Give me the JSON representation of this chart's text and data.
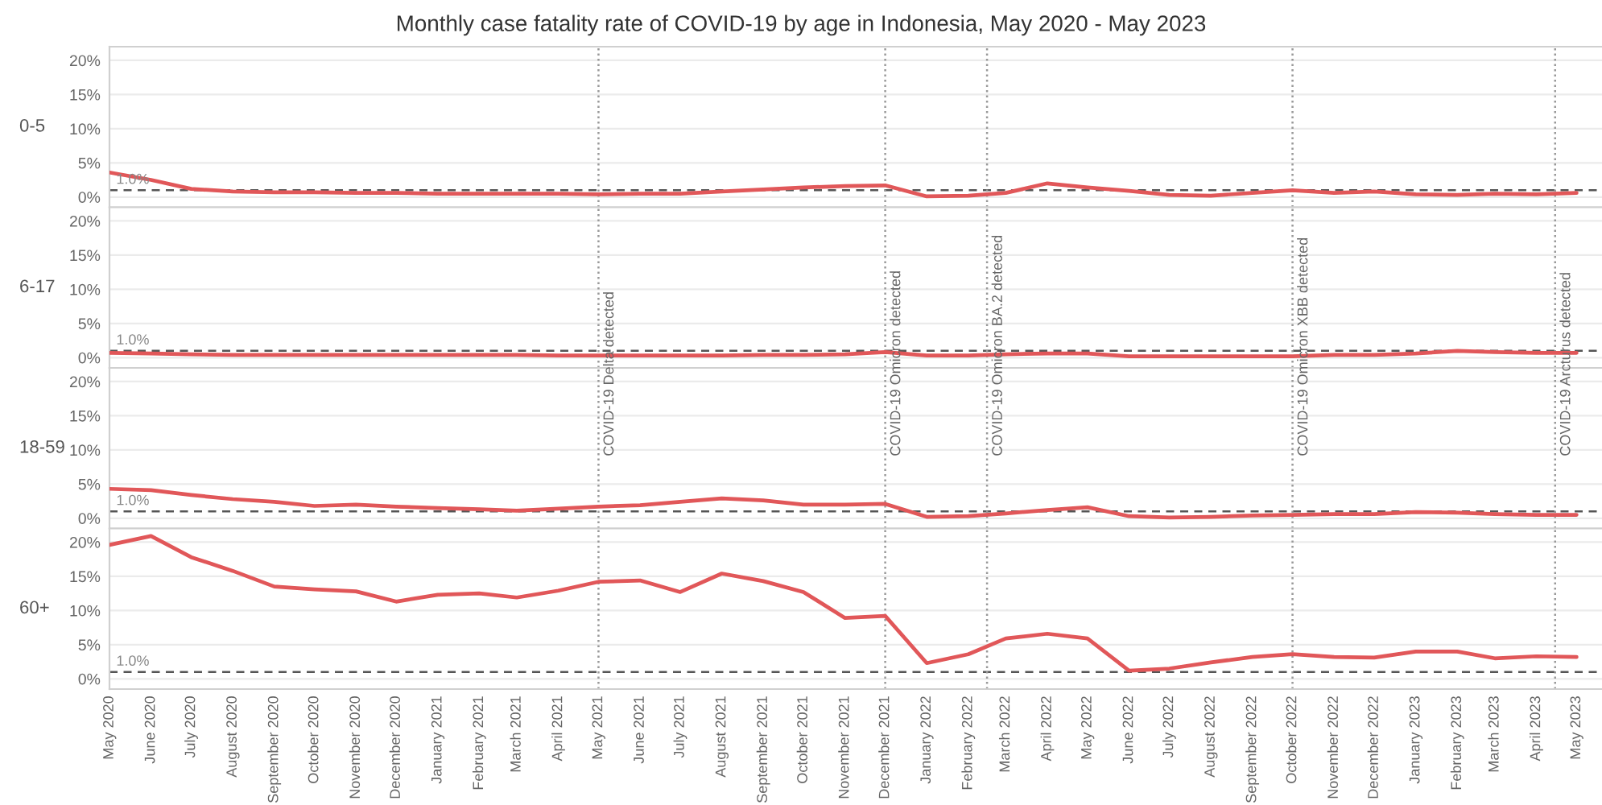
{
  "chart_data": [
    {
      "type": "line",
      "title": "Monthly case fatality rate of COVID-19 by age in Indonesia, May 2020 - May 2023",
      "ylabel": "0-5",
      "x": [
        "2020-05",
        "2020-06",
        "2020-07",
        "2020-08",
        "2020-09",
        "2020-10",
        "2020-11",
        "2020-12",
        "2021-01",
        "2021-02",
        "2021-03",
        "2021-04",
        "2021-05",
        "2021-06",
        "2021-07",
        "2021-08",
        "2021-09",
        "2021-10",
        "2021-11",
        "2021-12",
        "2022-01",
        "2022-02",
        "2022-03",
        "2022-04",
        "2022-05",
        "2022-06",
        "2022-07",
        "2022-08",
        "2022-09",
        "2022-10",
        "2022-11",
        "2022-12",
        "2023-01",
        "2023-02",
        "2023-03",
        "2023-04",
        "2023-05"
      ],
      "series": [
        {
          "color": "#e15759",
          "values": [
            3.6,
            2.5,
            1.2,
            0.8,
            0.7,
            0.7,
            0.6,
            0.6,
            0.5,
            0.5,
            0.5,
            0.5,
            0.4,
            0.5,
            0.5,
            0.8,
            1.1,
            1.4,
            1.6,
            1.7,
            0.1,
            0.2,
            0.6,
            2.0,
            1.4,
            0.9,
            0.3,
            0.2,
            0.6,
            1.0,
            0.6,
            0.8,
            0.4,
            0.3,
            0.5,
            0.4,
            0.6
          ]
        }
      ],
      "xlim": [
        "2020-05",
        "2023-05-20"
      ],
      "ylim": [
        -1.5,
        22
      ],
      "yticks": [
        {
          "value": 0,
          "label": "0%"
        },
        {
          "value": 5,
          "label": "5%"
        },
        {
          "value": 10,
          "label": "10%"
        },
        {
          "value": 15,
          "label": "15%"
        },
        {
          "value": 20,
          "label": "20%"
        }
      ],
      "tick_labels": "y",
      "grid": "y",
      "ref_lines": [
        {
          "axis": "y",
          "value": 1.0,
          "label": "1.0%",
          "line_style": "dashed",
          "color": "#555555"
        },
        {
          "axis": "x",
          "value": "2021-05",
          "line_style": "dotted",
          "color": "#999999"
        },
        {
          "axis": "x",
          "value": "2021-12",
          "line_style": "dotted",
          "color": "#999999"
        },
        {
          "axis": "x",
          "value": "2022-02-15",
          "line_style": "dotted",
          "color": "#999999"
        },
        {
          "axis": "x",
          "value": "2022-10",
          "line_style": "dotted",
          "color": "#999999"
        },
        {
          "axis": "x",
          "value": "2023-04-15",
          "line_style": "dotted",
          "color": "#999999"
        }
      ]
    },
    {
      "type": "line",
      "ylabel": "6-17",
      "x": [
        "2020-05",
        "2020-06",
        "2020-07",
        "2020-08",
        "2020-09",
        "2020-10",
        "2020-11",
        "2020-12",
        "2021-01",
        "2021-02",
        "2021-03",
        "2021-04",
        "2021-05",
        "2021-06",
        "2021-07",
        "2021-08",
        "2021-09",
        "2021-10",
        "2021-11",
        "2021-12",
        "2022-01",
        "2022-02",
        "2022-03",
        "2022-04",
        "2022-05",
        "2022-06",
        "2022-07",
        "2022-08",
        "2022-09",
        "2022-10",
        "2022-11",
        "2022-12",
        "2023-01",
        "2023-02",
        "2023-03",
        "2023-04",
        "2023-05"
      ],
      "series": [
        {
          "color": "#e15759",
          "values": [
            0.7,
            0.6,
            0.5,
            0.4,
            0.4,
            0.4,
            0.4,
            0.4,
            0.4,
            0.4,
            0.4,
            0.3,
            0.3,
            0.3,
            0.3,
            0.3,
            0.4,
            0.4,
            0.5,
            0.8,
            0.3,
            0.3,
            0.5,
            0.6,
            0.6,
            0.2,
            0.2,
            0.2,
            0.2,
            0.2,
            0.4,
            0.4,
            0.6,
            1.0,
            0.8,
            0.7,
            0.7
          ]
        }
      ],
      "xlim": [
        "2020-05",
        "2023-05-20"
      ],
      "ylim": [
        -1.5,
        22
      ],
      "yticks": [
        {
          "value": 0,
          "label": "0%"
        },
        {
          "value": 5,
          "label": "5%"
        },
        {
          "value": 10,
          "label": "10%"
        },
        {
          "value": 15,
          "label": "15%"
        },
        {
          "value": 20,
          "label": "20%"
        }
      ],
      "tick_labels": "y",
      "grid": "y",
      "ref_lines": [
        {
          "axis": "y",
          "value": 1.0,
          "label": "1.0%",
          "line_style": "dashed",
          "color": "#555555"
        },
        {
          "axis": "x",
          "value": "2021-05",
          "line_style": "dotted",
          "color": "#999999"
        },
        {
          "axis": "x",
          "value": "2021-12",
          "line_style": "dotted",
          "color": "#999999"
        },
        {
          "axis": "x",
          "value": "2022-02-15",
          "line_style": "dotted",
          "color": "#999999"
        },
        {
          "axis": "x",
          "value": "2022-10",
          "line_style": "dotted",
          "color": "#999999"
        },
        {
          "axis": "x",
          "value": "2023-04-15",
          "line_style": "dotted",
          "color": "#999999"
        }
      ]
    },
    {
      "type": "line",
      "ylabel": "18-59",
      "x": [
        "2020-05",
        "2020-06",
        "2020-07",
        "2020-08",
        "2020-09",
        "2020-10",
        "2020-11",
        "2020-12",
        "2021-01",
        "2021-02",
        "2021-03",
        "2021-04",
        "2021-05",
        "2021-06",
        "2021-07",
        "2021-08",
        "2021-09",
        "2021-10",
        "2021-11",
        "2021-12",
        "2022-01",
        "2022-02",
        "2022-03",
        "2022-04",
        "2022-05",
        "2022-06",
        "2022-07",
        "2022-08",
        "2022-09",
        "2022-10",
        "2022-11",
        "2022-12",
        "2023-01",
        "2023-02",
        "2023-03",
        "2023-04",
        "2023-05"
      ],
      "series": [
        {
          "color": "#e15759",
          "values": [
            4.3,
            4.1,
            3.4,
            2.8,
            2.4,
            1.8,
            2.0,
            1.7,
            1.5,
            1.3,
            1.1,
            1.4,
            1.7,
            1.9,
            2.4,
            2.9,
            2.6,
            2.0,
            2.0,
            2.1,
            0.2,
            0.3,
            0.7,
            1.2,
            1.6,
            0.3,
            0.1,
            0.2,
            0.4,
            0.5,
            0.6,
            0.6,
            0.9,
            0.8,
            0.6,
            0.5,
            0.5
          ]
        }
      ],
      "xlim": [
        "2020-05",
        "2023-05-20"
      ],
      "ylim": [
        -1.5,
        22
      ],
      "yticks": [
        {
          "value": 0,
          "label": "0%"
        },
        {
          "value": 5,
          "label": "5%"
        },
        {
          "value": 10,
          "label": "10%"
        },
        {
          "value": 15,
          "label": "15%"
        },
        {
          "value": 20,
          "label": "20%"
        }
      ],
      "tick_labels": "y",
      "grid": "y",
      "ref_lines": [
        {
          "axis": "y",
          "value": 1.0,
          "label": "1.0%",
          "line_style": "dashed",
          "color": "#555555"
        },
        {
          "axis": "x",
          "value": "2021-05",
          "label": "COVID-19 Delta detected",
          "line_style": "dotted",
          "color": "#999999"
        },
        {
          "axis": "x",
          "value": "2021-12",
          "label": "COVID-19 Omicron detected",
          "line_style": "dotted",
          "color": "#999999"
        },
        {
          "axis": "x",
          "value": "2022-02-15",
          "label": "COVID-19 Omicron BA.2 detected",
          "line_style": "dotted",
          "color": "#999999"
        },
        {
          "axis": "x",
          "value": "2022-10",
          "label": "COVID-19 Omicron XBB detected",
          "line_style": "dotted",
          "color": "#999999"
        },
        {
          "axis": "x",
          "value": "2023-04-15",
          "label": "COVID-19 Arcturus detected",
          "line_style": "dotted",
          "color": "#999999"
        }
      ]
    },
    {
      "type": "line",
      "ylabel": "60+",
      "x": [
        "2020-05",
        "2020-06",
        "2020-07",
        "2020-08",
        "2020-09",
        "2020-10",
        "2020-11",
        "2020-12",
        "2021-01",
        "2021-02",
        "2021-03",
        "2021-04",
        "2021-05",
        "2021-06",
        "2021-07",
        "2021-08",
        "2021-09",
        "2021-10",
        "2021-11",
        "2021-12",
        "2022-01",
        "2022-02",
        "2022-03",
        "2022-04",
        "2022-05",
        "2022-06",
        "2022-07",
        "2022-08",
        "2022-09",
        "2022-10",
        "2022-11",
        "2022-12",
        "2023-01",
        "2023-02",
        "2023-03",
        "2023-04",
        "2023-05"
      ],
      "series": [
        {
          "color": "#e15759",
          "values": [
            19.6,
            20.9,
            17.8,
            15.8,
            13.5,
            13.1,
            12.8,
            11.3,
            12.3,
            12.5,
            11.9,
            12.9,
            14.2,
            14.4,
            12.7,
            15.4,
            14.3,
            12.7,
            8.9,
            9.2,
            2.3,
            3.6,
            5.9,
            6.6,
            5.9,
            1.2,
            1.5,
            2.4,
            3.2,
            3.6,
            3.2,
            3.1,
            4.0,
            4.0,
            3.0,
            3.3,
            3.2
          ]
        }
      ],
      "xlim": [
        "2020-05",
        "2023-05-20"
      ],
      "ylim": [
        -1.5,
        22
      ],
      "yticks": [
        {
          "value": 0,
          "label": "0%"
        },
        {
          "value": 5,
          "label": "5%"
        },
        {
          "value": 10,
          "label": "10%"
        },
        {
          "value": 15,
          "label": "15%"
        },
        {
          "value": 20,
          "label": "20%"
        }
      ],
      "xticks": [
        {
          "value": "2020-05",
          "label": "May 2020"
        },
        {
          "value": "2020-06",
          "label": "June 2020"
        },
        {
          "value": "2020-07",
          "label": "July 2020"
        },
        {
          "value": "2020-08",
          "label": "August 2020"
        },
        {
          "value": "2020-09",
          "label": "September 2020"
        },
        {
          "value": "2020-10",
          "label": "October 2020"
        },
        {
          "value": "2020-11",
          "label": "November 2020"
        },
        {
          "value": "2020-12",
          "label": "December 2020"
        },
        {
          "value": "2021-01",
          "label": "January 2021"
        },
        {
          "value": "2021-02",
          "label": "February 2021"
        },
        {
          "value": "2021-03",
          "label": "March 2021"
        },
        {
          "value": "2021-04",
          "label": "April 2021"
        },
        {
          "value": "2021-05",
          "label": "May 2021"
        },
        {
          "value": "2021-06",
          "label": "June 2021"
        },
        {
          "value": "2021-07",
          "label": "July 2021"
        },
        {
          "value": "2021-08",
          "label": "August 2021"
        },
        {
          "value": "2021-09",
          "label": "September 2021"
        },
        {
          "value": "2021-10",
          "label": "October 2021"
        },
        {
          "value": "2021-11",
          "label": "November 2021"
        },
        {
          "value": "2021-12",
          "label": "December 2021"
        },
        {
          "value": "2022-01",
          "label": "January 2022"
        },
        {
          "value": "2022-02",
          "label": "February 2022"
        },
        {
          "value": "2022-03",
          "label": "March 2022"
        },
        {
          "value": "2022-04",
          "label": "April 2022"
        },
        {
          "value": "2022-05",
          "label": "May 2022"
        },
        {
          "value": "2022-06",
          "label": "June 2022"
        },
        {
          "value": "2022-07",
          "label": "July 2022"
        },
        {
          "value": "2022-08",
          "label": "August 2022"
        },
        {
          "value": "2022-09",
          "label": "September 2022"
        },
        {
          "value": "2022-10",
          "label": "October 2022"
        },
        {
          "value": "2022-11",
          "label": "November 2022"
        },
        {
          "value": "2022-12",
          "label": "December 2022"
        },
        {
          "value": "2023-01",
          "label": "January 2023"
        },
        {
          "value": "2023-02",
          "label": "February 2023"
        },
        {
          "value": "2023-03",
          "label": "March 2023"
        },
        {
          "value": "2023-04",
          "label": "April 2023"
        },
        {
          "value": "2023-05",
          "label": "May 2023"
        }
      ],
      "grid": "y",
      "ref_lines": [
        {
          "axis": "y",
          "value": 1.0,
          "label": "1.0%",
          "line_style": "dashed",
          "color": "#555555"
        },
        {
          "axis": "x",
          "value": "2021-05",
          "line_style": "dotted",
          "color": "#999999"
        },
        {
          "axis": "x",
          "value": "2021-12",
          "line_style": "dotted",
          "color": "#999999"
        },
        {
          "axis": "x",
          "value": "2022-02-15",
          "line_style": "dotted",
          "color": "#999999"
        },
        {
          "axis": "x",
          "value": "2022-10",
          "line_style": "dotted",
          "color": "#999999"
        },
        {
          "axis": "x",
          "value": "2023-04-15",
          "line_style": "dotted",
          "color": "#999999"
        }
      ]
    }
  ]
}
